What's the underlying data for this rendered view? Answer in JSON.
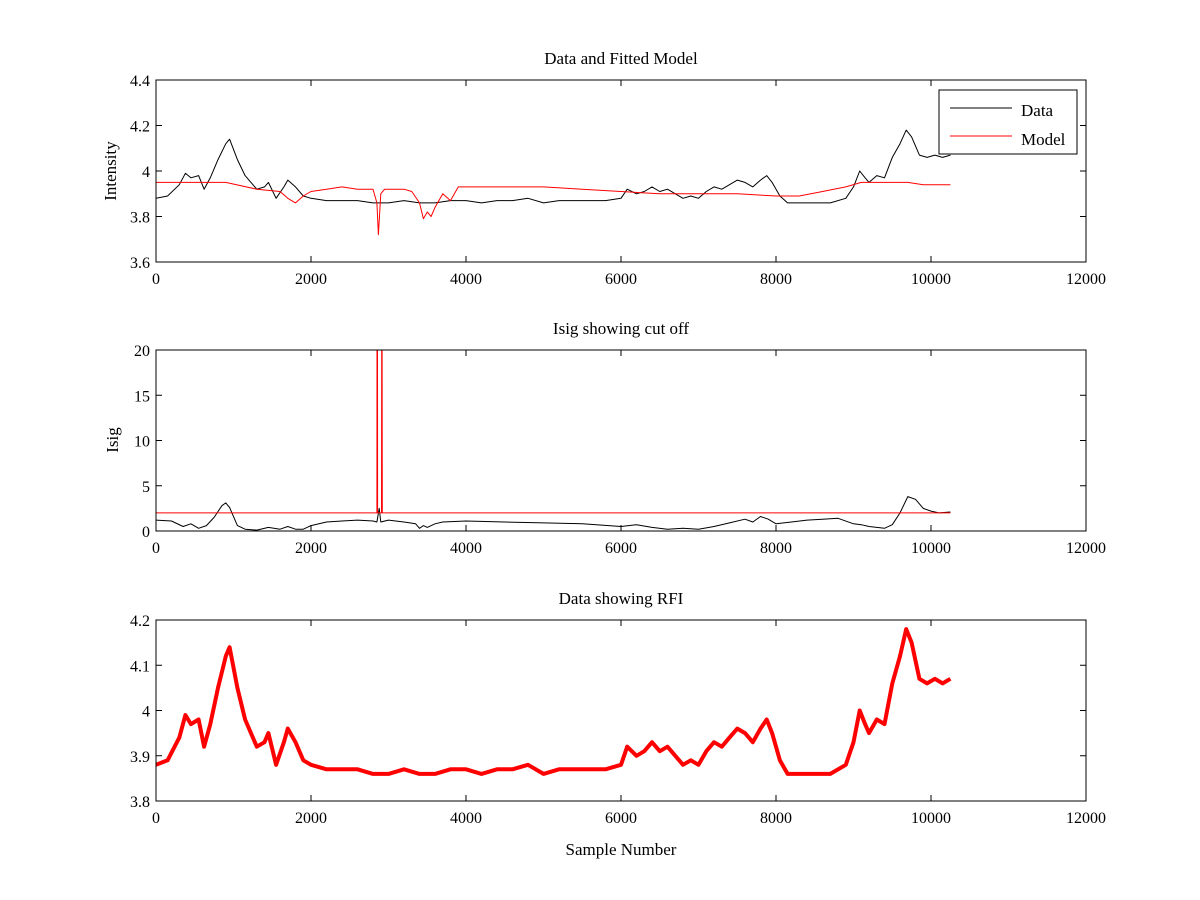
{
  "chart_data": [
    {
      "type": "line",
      "title": "Data and Fitted Model",
      "xlabel": "",
      "ylabel": "Intensity",
      "xlim": [
        0,
        12000
      ],
      "ylim": [
        3.6,
        4.4
      ],
      "xticks": [
        0,
        2000,
        4000,
        6000,
        8000,
        10000,
        12000
      ],
      "yticks": [
        3.6,
        3.8,
        4,
        4.2,
        4.4
      ],
      "xtick_labels": [
        "0",
        "2000",
        "4000",
        "6000",
        "8000",
        "10000",
        "12000"
      ],
      "ytick_labels": [
        "3.6",
        "3.8",
        "4",
        "4.2",
        "4.4"
      ],
      "grid": false,
      "legend": "top-right",
      "series": [
        {
          "name": "Data",
          "color": "#000000",
          "x": [
            0,
            150,
            300,
            380,
            450,
            550,
            620,
            700,
            800,
            900,
            950,
            1050,
            1150,
            1300,
            1400,
            1450,
            1550,
            1650,
            1700,
            1800,
            1900,
            2000,
            2200,
            2400,
            2600,
            2800,
            3000,
            3200,
            3400,
            3600,
            3800,
            4000,
            4200,
            4400,
            4600,
            4800,
            5000,
            5200,
            5400,
            5600,
            5800,
            6000,
            6080,
            6200,
            6300,
            6400,
            6500,
            6600,
            6700,
            6800,
            6900,
            7000,
            7100,
            7200,
            7300,
            7400,
            7500,
            7600,
            7700,
            7800,
            7880,
            7950,
            8050,
            8150,
            8300,
            8500,
            8700,
            8900,
            9000,
            9080,
            9150,
            9200,
            9300,
            9400,
            9500,
            9600,
            9680,
            9750,
            9850,
            9950,
            10050,
            10150,
            10250
          ],
          "y": [
            3.88,
            3.89,
            3.94,
            3.99,
            3.97,
            3.98,
            3.92,
            3.97,
            4.05,
            4.12,
            4.14,
            4.05,
            3.98,
            3.92,
            3.93,
            3.95,
            3.88,
            3.93,
            3.96,
            3.93,
            3.89,
            3.88,
            3.87,
            3.87,
            3.87,
            3.86,
            3.86,
            3.87,
            3.86,
            3.86,
            3.87,
            3.87,
            3.86,
            3.87,
            3.87,
            3.88,
            3.86,
            3.87,
            3.87,
            3.87,
            3.87,
            3.88,
            3.92,
            3.9,
            3.91,
            3.93,
            3.91,
            3.92,
            3.9,
            3.88,
            3.89,
            3.88,
            3.91,
            3.93,
            3.92,
            3.94,
            3.96,
            3.95,
            3.93,
            3.96,
            3.98,
            3.95,
            3.89,
            3.86,
            3.86,
            3.86,
            3.86,
            3.88,
            3.93,
            4.0,
            3.97,
            3.95,
            3.98,
            3.97,
            4.06,
            4.12,
            4.18,
            4.15,
            4.07,
            4.06,
            4.07,
            4.06,
            4.07
          ]
        },
        {
          "name": "Model",
          "color": "#ff0000",
          "x": [
            0,
            500,
            900,
            1300,
            1600,
            1700,
            1800,
            1900,
            2000,
            2200,
            2400,
            2600,
            2800,
            2850,
            2870,
            2900,
            2950,
            3000,
            3200,
            3300,
            3400,
            3450,
            3500,
            3550,
            3600,
            3700,
            3800,
            3900,
            4000,
            4500,
            5000,
            5500,
            6000,
            6500,
            7000,
            7500,
            8000,
            8300,
            8600,
            8900,
            9100,
            9300,
            9500,
            9700,
            9900,
            10100,
            10250
          ],
          "y": [
            3.95,
            3.95,
            3.95,
            3.92,
            3.91,
            3.88,
            3.86,
            3.89,
            3.91,
            3.92,
            3.93,
            3.92,
            3.92,
            3.86,
            3.72,
            3.9,
            3.92,
            3.92,
            3.92,
            3.91,
            3.86,
            3.79,
            3.82,
            3.8,
            3.84,
            3.9,
            3.87,
            3.93,
            3.93,
            3.93,
            3.93,
            3.92,
            3.91,
            3.9,
            3.9,
            3.9,
            3.89,
            3.89,
            3.91,
            3.93,
            3.95,
            3.95,
            3.95,
            3.95,
            3.94,
            3.94,
            3.94
          ]
        }
      ]
    },
    {
      "type": "line",
      "title": "Isig showing cut off",
      "xlabel": "",
      "ylabel": "Isig",
      "xlim": [
        0,
        12000
      ],
      "ylim": [
        0,
        20
      ],
      "xticks": [
        0,
        2000,
        4000,
        6000,
        8000,
        10000,
        12000
      ],
      "yticks": [
        0,
        5,
        10,
        15,
        20
      ],
      "xtick_labels": [
        "0",
        "2000",
        "4000",
        "6000",
        "8000",
        "10000",
        "12000"
      ],
      "ytick_labels": [
        "0",
        "5",
        "10",
        "15",
        "20"
      ],
      "grid": false,
      "series": [
        {
          "color": "#000000",
          "x": [
            0,
            200,
            350,
            450,
            550,
            650,
            750,
            850,
            900,
            950,
            1050,
            1150,
            1300,
            1450,
            1600,
            1700,
            1800,
            1900,
            2000,
            2200,
            2400,
            2600,
            2800,
            2850,
            2880,
            2900,
            3000,
            3200,
            3350,
            3400,
            3450,
            3500,
            3600,
            3700,
            4000,
            4500,
            5000,
            5500,
            6000,
            6200,
            6400,
            6600,
            6800,
            7000,
            7200,
            7400,
            7600,
            7700,
            7800,
            7900,
            8000,
            8200,
            8400,
            8600,
            8800,
            9000,
            9100,
            9200,
            9300,
            9400,
            9500,
            9600,
            9700,
            9800,
            9900,
            10000,
            10100,
            10250
          ],
          "y": [
            1.2,
            1.1,
            0.5,
            0.8,
            0.3,
            0.6,
            1.5,
            2.8,
            3.1,
            2.6,
            0.6,
            0.2,
            0.1,
            0.4,
            0.2,
            0.5,
            0.2,
            0.2,
            0.6,
            1.0,
            1.1,
            1.2,
            1.1,
            1.0,
            2.5,
            1.0,
            1.2,
            1.0,
            0.8,
            0.3,
            0.6,
            0.4,
            0.8,
            1.0,
            1.1,
            1.0,
            0.9,
            0.8,
            0.5,
            0.7,
            0.4,
            0.2,
            0.3,
            0.2,
            0.5,
            0.9,
            1.3,
            1.0,
            1.6,
            1.3,
            0.8,
            1.0,
            1.2,
            1.3,
            1.4,
            0.8,
            0.7,
            0.5,
            0.4,
            0.3,
            0.7,
            2.0,
            3.8,
            3.5,
            2.5,
            2.2,
            2.0,
            2.1
          ]
        },
        {
          "color": "#ff0000",
          "x": [
            0,
            2850,
            2852,
            2858,
            2860,
            2910,
            2912,
            2918,
            2920,
            10250
          ],
          "y": [
            2,
            2,
            20,
            20,
            2,
            2,
            20,
            20,
            2,
            2
          ]
        }
      ]
    },
    {
      "type": "line",
      "title": "Data showing RFI",
      "xlabel": "Sample Number",
      "ylabel": "",
      "xlim": [
        0,
        12000
      ],
      "ylim": [
        3.8,
        4.2
      ],
      "xticks": [
        0,
        2000,
        4000,
        6000,
        8000,
        10000,
        12000
      ],
      "yticks": [
        3.8,
        3.9,
        4,
        4.1,
        4.2
      ],
      "xtick_labels": [
        "0",
        "2000",
        "4000",
        "6000",
        "8000",
        "10000",
        "12000"
      ],
      "ytick_labels": [
        "3.8",
        "3.9",
        "4",
        "4.1",
        "4.2"
      ],
      "grid": false,
      "series": [
        {
          "color": "#ff0000",
          "x": [
            0,
            150,
            300,
            380,
            450,
            550,
            620,
            700,
            800,
            900,
            950,
            1050,
            1150,
            1300,
            1400,
            1450,
            1550,
            1650,
            1700,
            1800,
            1900,
            2000,
            2200,
            2400,
            2600,
            2800,
            3000,
            3200,
            3400,
            3600,
            3800,
            4000,
            4200,
            4400,
            4600,
            4800,
            5000,
            5200,
            5400,
            5600,
            5800,
            6000,
            6080,
            6200,
            6300,
            6400,
            6500,
            6600,
            6700,
            6800,
            6900,
            7000,
            7100,
            7200,
            7300,
            7400,
            7500,
            7600,
            7700,
            7800,
            7880,
            7950,
            8050,
            8150,
            8300,
            8500,
            8700,
            8900,
            9000,
            9080,
            9150,
            9200,
            9300,
            9400,
            9500,
            9600,
            9680,
            9750,
            9850,
            9950,
            10050,
            10150,
            10250
          ],
          "y": [
            3.88,
            3.89,
            3.94,
            3.99,
            3.97,
            3.98,
            3.92,
            3.97,
            4.05,
            4.12,
            4.14,
            4.05,
            3.98,
            3.92,
            3.93,
            3.95,
            3.88,
            3.93,
            3.96,
            3.93,
            3.89,
            3.88,
            3.87,
            3.87,
            3.87,
            3.86,
            3.86,
            3.87,
            3.86,
            3.86,
            3.87,
            3.87,
            3.86,
            3.87,
            3.87,
            3.88,
            3.86,
            3.87,
            3.87,
            3.87,
            3.87,
            3.88,
            3.92,
            3.9,
            3.91,
            3.93,
            3.91,
            3.92,
            3.9,
            3.88,
            3.89,
            3.88,
            3.91,
            3.93,
            3.92,
            3.94,
            3.96,
            3.95,
            3.93,
            3.96,
            3.98,
            3.95,
            3.89,
            3.86,
            3.86,
            3.86,
            3.86,
            3.88,
            3.93,
            4.0,
            3.97,
            3.95,
            3.98,
            3.97,
            4.06,
            4.12,
            4.18,
            4.15,
            4.07,
            4.06,
            4.07,
            4.06,
            4.07
          ]
        }
      ]
    }
  ]
}
